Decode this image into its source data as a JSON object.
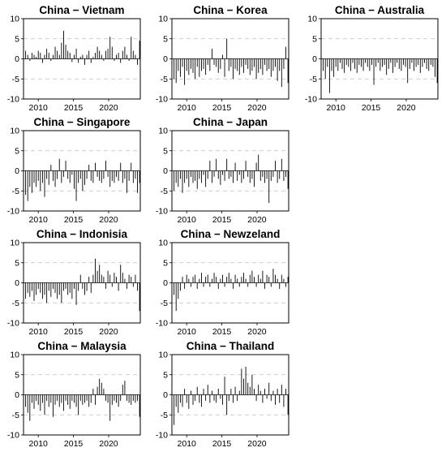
{
  "chart_data": [
    {
      "type": "bar",
      "title": "China − Vietnam",
      "x_start": 2007.9,
      "x_end": 2024.5,
      "xticks": [
        2010,
        2015,
        2020
      ],
      "yticks": [
        -10,
        -5,
        0,
        5,
        10
      ],
      "ylim": [
        -10,
        10
      ],
      "grid_y": [
        -5,
        5
      ],
      "x": [
        2007.9,
        2008.2,
        2008.5,
        2008.8,
        2009.1,
        2009.4,
        2009.7,
        2010.0,
        2010.3,
        2010.6,
        2010.9,
        2011.2,
        2011.5,
        2011.8,
        2012.1,
        2012.4,
        2012.7,
        2013.0,
        2013.3,
        2013.6,
        2013.9,
        2014.2,
        2014.5,
        2014.8,
        2015.1,
        2015.4,
        2015.7,
        2016.0,
        2016.3,
        2016.6,
        2016.9,
        2017.2,
        2017.5,
        2017.8,
        2018.1,
        2018.4,
        2018.7,
        2019.0,
        2019.3,
        2019.6,
        2019.9,
        2020.2,
        2020.5,
        2020.8,
        2021.1,
        2021.4,
        2021.7,
        2022.0,
        2022.3,
        2022.6,
        2022.9,
        2023.2,
        2023.5,
        2023.8,
        2024.1,
        2024.4
      ],
      "values": [
        9.5,
        2.0,
        1.0,
        -0.5,
        1.5,
        1.0,
        0.5,
        2.0,
        1.5,
        -1.0,
        1.0,
        2.5,
        1.5,
        -0.5,
        1.0,
        3.0,
        2.0,
        1.0,
        4.0,
        7.0,
        3.5,
        2.0,
        1.5,
        -0.8,
        1.0,
        2.5,
        -1.0,
        0.5,
        1.0,
        -1.5,
        1.0,
        2.0,
        -1.0,
        0.5,
        1.5,
        3.0,
        2.0,
        1.0,
        -0.5,
        2.0,
        2.5,
        5.5,
        3.0,
        -0.5,
        1.0,
        1.5,
        -1.0,
        2.0,
        3.0,
        1.0,
        -0.5,
        5.5,
        2.0,
        1.0,
        -1.5,
        4.5
      ]
    },
    {
      "type": "bar",
      "title": "China − Korea",
      "x_start": 2007.9,
      "x_end": 2024.5,
      "xticks": [
        2010,
        2015,
        2020
      ],
      "yticks": [
        -10,
        -5,
        0,
        5,
        10
      ],
      "ylim": [
        -10,
        10
      ],
      "grid_y": [
        -5,
        5
      ],
      "x": [
        2007.9,
        2008.2,
        2008.5,
        2008.8,
        2009.1,
        2009.4,
        2009.7,
        2010.0,
        2010.3,
        2010.6,
        2010.9,
        2011.2,
        2011.5,
        2011.8,
        2012.1,
        2012.4,
        2012.7,
        2013.0,
        2013.3,
        2013.6,
        2013.9,
        2014.2,
        2014.5,
        2014.8,
        2015.1,
        2015.4,
        2015.7,
        2016.0,
        2016.3,
        2016.6,
        2016.9,
        2017.2,
        2017.5,
        2017.8,
        2018.1,
        2018.4,
        2018.7,
        2019.0,
        2019.3,
        2019.6,
        2019.9,
        2020.2,
        2020.5,
        2020.8,
        2021.1,
        2021.4,
        2021.7,
        2022.0,
        2022.3,
        2022.6,
        2022.9,
        2023.2,
        2023.5,
        2023.8,
        2024.1,
        2024.4
      ],
      "values": [
        7.5,
        -5.0,
        -6.0,
        -3.0,
        -4.5,
        -2.0,
        -6.5,
        -3.0,
        -4.0,
        -2.5,
        -3.5,
        -5.0,
        -2.0,
        -4.5,
        -3.0,
        -2.5,
        -4.0,
        -1.5,
        -3.0,
        2.5,
        -1.5,
        -2.0,
        -3.5,
        -2.5,
        1.0,
        -4.5,
        5.0,
        -3.0,
        -2.0,
        -5.0,
        -2.5,
        -3.0,
        -4.0,
        -2.0,
        -3.5,
        -1.5,
        -2.5,
        -4.0,
        -3.0,
        -2.0,
        -5.0,
        -3.5,
        -2.5,
        -4.0,
        -1.5,
        -3.0,
        -2.5,
        -4.5,
        -3.0,
        -2.0,
        -5.5,
        -3.0,
        -7.0,
        -2.5,
        3.0,
        -6.0
      ]
    },
    {
      "type": "bar",
      "title": "China − Australia",
      "x_start": 2007.9,
      "x_end": 2024.5,
      "xticks": [
        2010,
        2015,
        2020
      ],
      "yticks": [
        -10,
        -5,
        0,
        5,
        10
      ],
      "ylim": [
        -10,
        10
      ],
      "grid_y": [
        -5,
        5
      ],
      "x": [
        2007.9,
        2008.2,
        2008.5,
        2008.8,
        2009.1,
        2009.4,
        2009.7,
        2010.0,
        2010.3,
        2010.6,
        2010.9,
        2011.2,
        2011.5,
        2011.8,
        2012.1,
        2012.4,
        2012.7,
        2013.0,
        2013.3,
        2013.6,
        2013.9,
        2014.2,
        2014.5,
        2014.8,
        2015.1,
        2015.4,
        2015.7,
        2016.0,
        2016.3,
        2016.6,
        2016.9,
        2017.2,
        2017.5,
        2017.8,
        2018.1,
        2018.4,
        2018.7,
        2019.0,
        2019.3,
        2019.6,
        2019.9,
        2020.2,
        2020.5,
        2020.8,
        2021.1,
        2021.4,
        2021.7,
        2022.0,
        2022.3,
        2022.6,
        2022.9,
        2023.2,
        2023.5,
        2023.8,
        2024.1,
        2024.4
      ],
      "values": [
        10.0,
        -3.0,
        -5.0,
        -2.0,
        -8.5,
        -3.0,
        -4.5,
        -2.0,
        -3.0,
        -1.0,
        -2.5,
        -3.5,
        -1.5,
        -2.0,
        -3.0,
        -1.0,
        -2.5,
        -3.5,
        -1.5,
        -2.0,
        -3.0,
        -1.0,
        -2.0,
        -3.0,
        -1.5,
        -6.5,
        -2.0,
        -1.0,
        -3.0,
        -2.0,
        -1.5,
        -4.0,
        -2.5,
        -1.0,
        -3.5,
        -2.0,
        -1.0,
        -2.5,
        -3.0,
        -1.5,
        -2.0,
        -6.0,
        -2.5,
        -1.0,
        -3.0,
        -2.0,
        -1.5,
        -3.5,
        -2.0,
        -1.0,
        -2.5,
        -3.0,
        -1.5,
        -2.0,
        -4.5,
        -6.0
      ]
    },
    {
      "type": "bar",
      "title": "China − Singapore",
      "x_start": 2007.9,
      "x_end": 2024.5,
      "xticks": [
        2010,
        2015,
        2020
      ],
      "yticks": [
        -10,
        -5,
        0,
        5,
        10
      ],
      "ylim": [
        -10,
        10
      ],
      "grid_y": [
        -5,
        5
      ],
      "x": [
        2007.9,
        2008.2,
        2008.5,
        2008.8,
        2009.1,
        2009.4,
        2009.7,
        2010.0,
        2010.3,
        2010.6,
        2010.9,
        2011.2,
        2011.5,
        2011.8,
        2012.1,
        2012.4,
        2012.7,
        2013.0,
        2013.3,
        2013.6,
        2013.9,
        2014.2,
        2014.5,
        2014.8,
        2015.1,
        2015.4,
        2015.7,
        2016.0,
        2016.3,
        2016.6,
        2016.9,
        2017.2,
        2017.5,
        2017.8,
        2018.1,
        2018.4,
        2018.7,
        2019.0,
        2019.3,
        2019.6,
        2019.9,
        2020.2,
        2020.5,
        2020.8,
        2021.1,
        2021.4,
        2021.7,
        2022.0,
        2022.3,
        2022.6,
        2022.9,
        2023.2,
        2023.5,
        2023.8,
        2024.1,
        2024.4
      ],
      "values": [
        5.0,
        -6.0,
        -7.5,
        -4.0,
        -5.5,
        -3.0,
        -4.0,
        -2.5,
        -5.0,
        -3.0,
        -6.5,
        -2.0,
        -3.5,
        1.5,
        -2.5,
        -4.0,
        -2.0,
        3.0,
        -3.0,
        -1.5,
        2.5,
        -2.0,
        -3.0,
        -1.0,
        -4.5,
        -7.5,
        -3.0,
        -2.0,
        -5.0,
        -3.5,
        -2.0,
        1.5,
        -2.5,
        -3.0,
        2.0,
        -1.5,
        -2.5,
        -3.0,
        -2.0,
        2.5,
        -1.5,
        -4.0,
        -2.5,
        -3.0,
        -1.5,
        -2.5,
        2.0,
        -3.0,
        -2.0,
        -5.5,
        -2.5,
        2.0,
        -3.0,
        -2.0,
        -5.5,
        -3.0
      ]
    },
    {
      "type": "bar",
      "title": "China − Japan",
      "x_start": 2007.9,
      "x_end": 2024.5,
      "xticks": [
        2010,
        2015,
        2020
      ],
      "yticks": [
        -10,
        -5,
        0,
        5,
        10
      ],
      "ylim": [
        -10,
        10
      ],
      "grid_y": [
        -5,
        5
      ],
      "x": [
        2007.9,
        2008.2,
        2008.5,
        2008.8,
        2009.1,
        2009.4,
        2009.7,
        2010.0,
        2010.3,
        2010.6,
        2010.9,
        2011.2,
        2011.5,
        2011.8,
        2012.1,
        2012.4,
        2012.7,
        2013.0,
        2013.3,
        2013.6,
        2013.9,
        2014.2,
        2014.5,
        2014.8,
        2015.1,
        2015.4,
        2015.7,
        2016.0,
        2016.3,
        2016.6,
        2016.9,
        2017.2,
        2017.5,
        2017.8,
        2018.1,
        2018.4,
        2018.7,
        2019.0,
        2019.3,
        2019.6,
        2019.9,
        2020.2,
        2020.5,
        2020.8,
        2021.1,
        2021.4,
        2021.7,
        2022.0,
        2022.3,
        2022.6,
        2022.9,
        2023.2,
        2023.5,
        2023.8,
        2024.1,
        2024.4
      ],
      "values": [
        2.0,
        -5.0,
        -3.0,
        -4.0,
        -2.0,
        -5.5,
        -3.0,
        -2.0,
        -4.0,
        -1.5,
        -3.0,
        -2.5,
        -4.5,
        -2.0,
        -3.0,
        -1.0,
        -4.0,
        -2.0,
        2.5,
        -3.0,
        -1.5,
        3.0,
        -2.0,
        -3.5,
        -1.0,
        -2.5,
        3.0,
        -2.0,
        -1.5,
        -3.0,
        2.0,
        -2.5,
        -1.0,
        -3.0,
        -2.0,
        2.5,
        -1.5,
        -3.0,
        -2.0,
        -4.0,
        2.0,
        4.0,
        -2.5,
        -1.5,
        -3.0,
        -2.0,
        -8.0,
        -2.5,
        -1.5,
        2.5,
        -3.0,
        -2.0,
        3.0,
        -2.5,
        -1.5,
        -4.5
      ]
    },
    {
      "type": "bar",
      "title": "China − Indonisia",
      "x_start": 2007.9,
      "x_end": 2024.5,
      "xticks": [
        2010,
        2015,
        2020
      ],
      "yticks": [
        -10,
        -5,
        0,
        5,
        10
      ],
      "ylim": [
        -10,
        10
      ],
      "grid_y": [
        -5,
        5
      ],
      "x": [
        2007.9,
        2008.2,
        2008.5,
        2008.8,
        2009.1,
        2009.4,
        2009.7,
        2010.0,
        2010.3,
        2010.6,
        2010.9,
        2011.2,
        2011.5,
        2011.8,
        2012.1,
        2012.4,
        2012.7,
        2013.0,
        2013.3,
        2013.6,
        2013.9,
        2014.2,
        2014.5,
        2014.8,
        2015.1,
        2015.4,
        2015.7,
        2016.0,
        2016.3,
        2016.6,
        2016.9,
        2017.2,
        2017.5,
        2017.8,
        2018.1,
        2018.4,
        2018.7,
        2019.0,
        2019.3,
        2019.6,
        2019.9,
        2020.2,
        2020.5,
        2020.8,
        2021.1,
        2021.4,
        2021.7,
        2022.0,
        2022.3,
        2022.6,
        2022.9,
        2023.2,
        2023.5,
        2023.8,
        2024.1,
        2024.4
      ],
      "values": [
        2.0,
        -4.0,
        -2.5,
        -3.5,
        -2.0,
        -4.5,
        -3.0,
        -1.5,
        -2.5,
        -4.0,
        -3.0,
        -5.0,
        -2.0,
        -3.5,
        -1.5,
        -2.5,
        -4.0,
        -3.0,
        -5.0,
        -2.0,
        -1.5,
        -3.0,
        -2.5,
        -4.0,
        -1.5,
        -5.5,
        -2.0,
        2.0,
        -1.5,
        -3.0,
        -2.0,
        1.5,
        -2.5,
        2.0,
        6.0,
        3.0,
        4.5,
        2.0,
        1.5,
        -1.5,
        3.0,
        2.0,
        -1.0,
        2.5,
        1.5,
        -2.0,
        4.5,
        2.5,
        1.0,
        -1.5,
        2.0,
        1.5,
        -1.0,
        2.0,
        -2.0,
        -7.0
      ]
    },
    {
      "type": "bar",
      "title": "China − Newzeland",
      "x_start": 2007.9,
      "x_end": 2024.5,
      "xticks": [
        2010,
        2015,
        2020
      ],
      "yticks": [
        -10,
        -5,
        0,
        5,
        10
      ],
      "ylim": [
        -10,
        10
      ],
      "grid_y": [
        -5,
        5
      ],
      "x": [
        2007.9,
        2008.2,
        2008.5,
        2008.8,
        2009.1,
        2009.4,
        2009.7,
        2010.0,
        2010.3,
        2010.6,
        2010.9,
        2011.2,
        2011.5,
        2011.8,
        2012.1,
        2012.4,
        2012.7,
        2013.0,
        2013.3,
        2013.6,
        2013.9,
        2014.2,
        2014.5,
        2014.8,
        2015.1,
        2015.4,
        2015.7,
        2016.0,
        2016.3,
        2016.6,
        2016.9,
        2017.2,
        2017.5,
        2017.8,
        2018.1,
        2018.4,
        2018.7,
        2019.0,
        2019.3,
        2019.6,
        2019.9,
        2020.2,
        2020.5,
        2020.8,
        2021.1,
        2021.4,
        2021.7,
        2022.0,
        2022.3,
        2022.6,
        2022.9,
        2023.2,
        2023.5,
        2023.8,
        2024.1,
        2024.4
      ],
      "values": [
        6.5,
        -3.0,
        -7.0,
        -4.0,
        -2.0,
        1.5,
        -1.5,
        2.0,
        1.0,
        -1.0,
        1.5,
        2.0,
        -1.5,
        1.0,
        2.5,
        -1.0,
        1.5,
        2.0,
        -1.0,
        1.0,
        2.5,
        1.5,
        -1.5,
        1.0,
        2.0,
        -1.0,
        1.5,
        2.5,
        1.0,
        -1.5,
        2.0,
        1.0,
        -1.0,
        1.5,
        2.5,
        1.0,
        -1.0,
        2.0,
        3.0,
        1.5,
        -1.0,
        2.0,
        1.0,
        3.0,
        -1.5,
        2.0,
        1.5,
        -1.0,
        3.5,
        2.0,
        1.0,
        -1.5,
        2.0,
        1.0,
        -1.0,
        1.5
      ]
    },
    {
      "type": "bar",
      "title": "China − Malaysia",
      "x_start": 2007.9,
      "x_end": 2024.5,
      "xticks": [
        2010,
        2015,
        2020
      ],
      "yticks": [
        -10,
        -5,
        0,
        5,
        10
      ],
      "ylim": [
        -10,
        10
      ],
      "grid_y": [
        -5,
        5
      ],
      "x": [
        2007.9,
        2008.2,
        2008.5,
        2008.8,
        2009.1,
        2009.4,
        2009.7,
        2010.0,
        2010.3,
        2010.6,
        2010.9,
        2011.2,
        2011.5,
        2011.8,
        2012.1,
        2012.4,
        2012.7,
        2013.0,
        2013.3,
        2013.6,
        2013.9,
        2014.2,
        2014.5,
        2014.8,
        2015.1,
        2015.4,
        2015.7,
        2016.0,
        2016.3,
        2016.6,
        2016.9,
        2017.2,
        2017.5,
        2017.8,
        2018.1,
        2018.4,
        2018.7,
        2019.0,
        2019.3,
        2019.6,
        2019.9,
        2020.2,
        2020.5,
        2020.8,
        2021.1,
        2021.4,
        2021.7,
        2022.0,
        2022.3,
        2022.6,
        2022.9,
        2023.2,
        2023.5,
        2023.8,
        2024.1,
        2024.4
      ],
      "values": [
        1.5,
        -3.0,
        -4.5,
        -6.5,
        -2.0,
        -3.5,
        -1.5,
        -2.5,
        -4.0,
        -2.0,
        -5.0,
        -1.5,
        -3.0,
        -2.0,
        -5.5,
        -2.5,
        -1.5,
        -3.0,
        -2.0,
        -4.0,
        -1.5,
        -2.5,
        -3.5,
        -1.5,
        -2.0,
        -3.0,
        -5.0,
        -1.5,
        -2.5,
        -2.0,
        -1.5,
        -3.0,
        -2.0,
        1.5,
        -2.5,
        2.0,
        4.0,
        3.0,
        1.5,
        -1.5,
        -2.0,
        -6.5,
        -2.5,
        -1.5,
        -2.0,
        -3.0,
        -1.5,
        2.5,
        3.5,
        -1.5,
        -2.0,
        -2.5,
        -1.5,
        -2.0,
        -1.5,
        -5.5
      ]
    },
    {
      "type": "bar",
      "title": "China − Thailand",
      "x_start": 2007.9,
      "x_end": 2024.5,
      "xticks": [
        2010,
        2015,
        2020
      ],
      "yticks": [
        -10,
        -5,
        0,
        5,
        10
      ],
      "ylim": [
        -10,
        10
      ],
      "grid_y": [
        -5,
        5
      ],
      "x": [
        2007.9,
        2008.2,
        2008.5,
        2008.8,
        2009.1,
        2009.4,
        2009.7,
        2010.0,
        2010.3,
        2010.6,
        2010.9,
        2011.2,
        2011.5,
        2011.8,
        2012.1,
        2012.4,
        2012.7,
        2013.0,
        2013.3,
        2013.6,
        2013.9,
        2014.2,
        2014.5,
        2014.8,
        2015.1,
        2015.4,
        2015.7,
        2016.0,
        2016.3,
        2016.6,
        2016.9,
        2017.2,
        2017.5,
        2017.8,
        2018.1,
        2018.4,
        2018.7,
        2019.0,
        2019.3,
        2019.6,
        2019.9,
        2020.2,
        2020.5,
        2020.8,
        2021.1,
        2021.4,
        2021.7,
        2022.0,
        2022.3,
        2022.6,
        2022.9,
        2023.2,
        2023.5,
        2023.8,
        2024.1,
        2024.4
      ],
      "values": [
        7.5,
        -7.5,
        -3.0,
        -4.5,
        -2.0,
        -3.0,
        1.5,
        -2.0,
        -3.5,
        1.0,
        -2.5,
        -1.5,
        2.0,
        -2.0,
        -3.0,
        1.5,
        -1.5,
        2.5,
        -2.0,
        1.0,
        -1.5,
        -2.0,
        1.5,
        -1.0,
        -2.5,
        4.5,
        -5.0,
        -1.5,
        1.5,
        -2.0,
        2.0,
        -1.5,
        1.0,
        6.5,
        4.0,
        7.0,
        3.0,
        2.0,
        5.0,
        1.5,
        -1.5,
        2.5,
        1.0,
        -2.0,
        1.5,
        -1.0,
        3.0,
        -1.5,
        1.0,
        -2.5,
        1.5,
        -2.0,
        2.5,
        -3.0,
        1.5,
        -5.0
      ]
    }
  ]
}
